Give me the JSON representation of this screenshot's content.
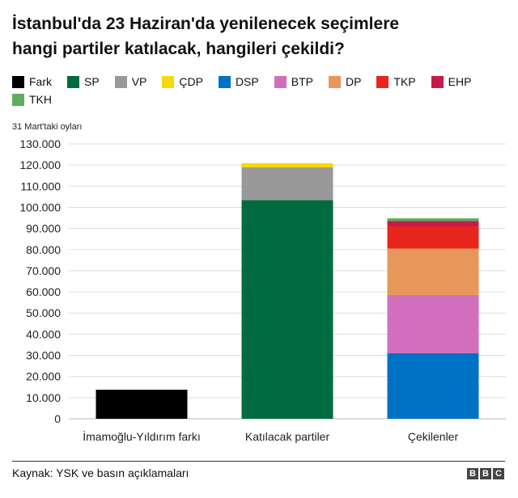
{
  "title_line1": "İstanbul'da 23 Haziran'da yenilenecek seçimlere",
  "title_line2": "hangi partiler katılacak, hangileri çekildi?",
  "source": "Kaynak: YSK ve basın açıklamaları",
  "logo_letters": [
    "B",
    "B",
    "C"
  ],
  "legend": [
    {
      "label": "Fark",
      "color": "#000000"
    },
    {
      "label": "SP",
      "color": "#006b3f"
    },
    {
      "label": "VP",
      "color": "#999999"
    },
    {
      "label": "ÇDP",
      "color": "#f5d90a"
    },
    {
      "label": "DSP",
      "color": "#0072c6"
    },
    {
      "label": "BTP",
      "color": "#d16fbd"
    },
    {
      "label": "DP",
      "color": "#e8975c"
    },
    {
      "label": "TKP",
      "color": "#e8251c"
    },
    {
      "label": "EHP",
      "color": "#c21d4a"
    },
    {
      "label": "TKH",
      "color": "#5fae5f"
    }
  ],
  "chart_data": {
    "type": "bar",
    "stacked": true,
    "ylabel": "31 Mart'taki oyları",
    "xlabel": "",
    "ylim": [
      0,
      130000
    ],
    "yticks": [
      0,
      10000,
      20000,
      30000,
      40000,
      50000,
      60000,
      70000,
      80000,
      90000,
      100000,
      110000,
      120000,
      130000
    ],
    "ytick_labels": [
      "0",
      "10.000",
      "20.000",
      "30.000",
      "40.000",
      "50.000",
      "60.000",
      "70.000",
      "80.000",
      "90.000",
      "100.000",
      "110.000",
      "120.000",
      "130.000"
    ],
    "grid": true,
    "legend_position": "top",
    "categories": [
      "İmamoğlu-Yıldırım farkı",
      "Katılacak partiler",
      "Çekilenler"
    ],
    "series": [
      {
        "name": "Fark",
        "color": "#000000",
        "values": [
          13729,
          0,
          0
        ]
      },
      {
        "name": "SP",
        "color": "#006b3f",
        "values": [
          0,
          103400,
          0
        ]
      },
      {
        "name": "VP",
        "color": "#999999",
        "values": [
          0,
          15500,
          0
        ]
      },
      {
        "name": "ÇDP",
        "color": "#f5d90a",
        "values": [
          0,
          2000,
          0
        ]
      },
      {
        "name": "DSP",
        "color": "#0072c6",
        "values": [
          0,
          0,
          31000
        ]
      },
      {
        "name": "BTP",
        "color": "#d16fbd",
        "values": [
          0,
          0,
          27500
        ]
      },
      {
        "name": "DP",
        "color": "#e8975c",
        "values": [
          0,
          0,
          22000
        ]
      },
      {
        "name": "TKP",
        "color": "#e8251c",
        "values": [
          0,
          0,
          10500
        ]
      },
      {
        "name": "EHP",
        "color": "#c21d4a",
        "values": [
          0,
          0,
          2500
        ]
      },
      {
        "name": "TKH",
        "color": "#5fae5f",
        "values": [
          0,
          0,
          1300
        ]
      }
    ]
  }
}
